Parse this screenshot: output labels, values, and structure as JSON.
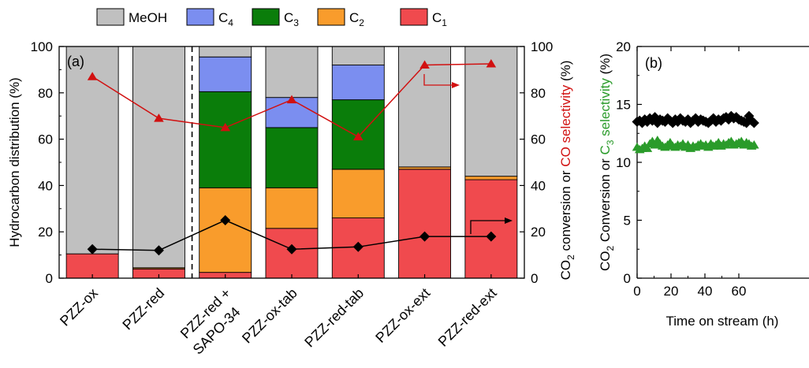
{
  "legend": [
    {
      "name": "MeOH",
      "color": "#c0c0c0"
    },
    {
      "name": "C",
      "sub": "4",
      "color": "#7b8ef0"
    },
    {
      "name": "C",
      "sub": "3",
      "color": "#0a7d0a"
    },
    {
      "name": "C",
      "sub": "2",
      "color": "#f99c2c"
    },
    {
      "name": "C",
      "sub": "1",
      "color": "#f04a4e"
    }
  ],
  "chart_data": [
    {
      "type": "bar",
      "panel_label": "(a)",
      "stacked": true,
      "categories": [
        "PZZ-ox",
        "PZZ-red",
        "PZZ-red +\nSAPO-34",
        "PZZ-ox-tab",
        "PZZ-red-tab",
        "PZZ-ox-ext",
        "PZZ-red-ext"
      ],
      "series": [
        {
          "name": "C1",
          "color": "#f04a4e",
          "values": [
            10.5,
            4.0,
            2.5,
            21.5,
            26.0,
            47.0,
            42.5
          ]
        },
        {
          "name": "C2",
          "color": "#f99c2c",
          "values": [
            0.0,
            0.5,
            36.5,
            17.5,
            21.0,
            1.0,
            1.5
          ]
        },
        {
          "name": "C3",
          "color": "#0a7d0a",
          "values": [
            0.0,
            0.0,
            41.5,
            26.0,
            30.0,
            0.0,
            0.0
          ]
        },
        {
          "name": "C4",
          "color": "#7b8ef0",
          "values": [
            0.0,
            0.0,
            15.0,
            13.0,
            15.0,
            0.0,
            0.0
          ]
        },
        {
          "name": "MeOH",
          "color": "#c0c0c0",
          "values": [
            89.5,
            95.5,
            4.5,
            22.0,
            8.0,
            52.0,
            56.0
          ]
        }
      ],
      "ylabel": "Hydrocarbon distribution (%)",
      "ylim": [
        0,
        100
      ],
      "yticks": [
        0,
        20,
        40,
        60,
        80,
        100
      ],
      "y2label_prefix": "CO",
      "y2label_sub": "2",
      "y2label_mid": " conversion or ",
      "y2label_red": "CO selectivity",
      "y2label_suffix": " (%)",
      "y2lim": [
        0,
        100
      ],
      "y2ticks": [
        0,
        20,
        40,
        60,
        80,
        100
      ],
      "overlay_series": [
        {
          "name": "CO selectivity",
          "marker": "triangle",
          "color": "#d11010",
          "axis": "right",
          "values": [
            87,
            69,
            65,
            77,
            61,
            92,
            92.5
          ]
        },
        {
          "name": "CO2 conversion",
          "marker": "diamond",
          "color": "#000000",
          "axis": "right",
          "values": [
            12.5,
            12,
            25,
            12.5,
            13.5,
            18,
            18
          ]
        }
      ],
      "divider_after_index": 1,
      "grid": false
    },
    {
      "type": "scatter",
      "panel_label": "(b)",
      "xlabel": "Time on stream (h)",
      "xticks": [
        0,
        20,
        40,
        60
      ],
      "xlim": [
        0,
        70
      ],
      "ylim": [
        0,
        20
      ],
      "yticks": [
        0,
        5,
        10,
        15,
        20
      ],
      "ylabel_black": "CO",
      "ylabel_sub1": "2",
      "ylabel_mid": " Conversion or ",
      "ylabel_green": "C",
      "ylabel_sub2": "3",
      "ylabel_green2": " selectivity",
      "ylabel_suffix": " (%)",
      "series": [
        {
          "name": "CO2 conversion",
          "marker": "diamond",
          "color": "#000000",
          "x": [
            0,
            1.5,
            3,
            4.5,
            6,
            7.5,
            9,
            10.5,
            12,
            13.5,
            15,
            16.5,
            18,
            19.5,
            21,
            22.5,
            24,
            25.5,
            27,
            28.5,
            30,
            31.5,
            33,
            34.5,
            36,
            37.5,
            39,
            40.5,
            42,
            43.5,
            45,
            46.5,
            48,
            49.5,
            51,
            52.5,
            54,
            55.5,
            57,
            58.5,
            60,
            61.5,
            63,
            64.5,
            66,
            67.5,
            69
          ],
          "y": [
            13.5,
            13.6,
            13.4,
            13.7,
            13.5,
            13.8,
            13.6,
            13.9,
            13.4,
            13.7,
            13.6,
            13.5,
            13.8,
            13.6,
            13.4,
            13.7,
            13.5,
            13.8,
            13.6,
            13.5,
            13.7,
            13.4,
            13.6,
            13.8,
            13.5,
            13.7,
            13.6,
            13.5,
            13.4,
            13.6,
            13.8,
            13.5,
            13.7,
            13.6,
            13.8,
            13.9,
            13.7,
            14.0,
            13.8,
            13.9,
            13.7,
            13.6,
            13.5,
            13.4,
            14.0,
            13.6,
            13.4
          ]
        },
        {
          "name": "C3 selectivity",
          "marker": "triangle",
          "color": "#2a9b2a",
          "x": [
            0,
            1.5,
            3,
            4.5,
            6,
            7.5,
            9,
            10.5,
            12,
            13.5,
            15,
            16.5,
            18,
            19.5,
            21,
            22.5,
            24,
            25.5,
            27,
            28.5,
            30,
            31.5,
            33,
            34.5,
            36,
            37.5,
            39,
            40.5,
            42,
            43.5,
            45,
            46.5,
            48,
            49.5,
            51,
            52.5,
            54,
            55.5,
            57,
            58.5,
            60,
            61.5,
            63,
            64.5,
            66,
            67.5,
            69
          ],
          "y": [
            11.3,
            11.1,
            11.2,
            11.4,
            11.2,
            11.6,
            11.8,
            11.5,
            11.9,
            11.6,
            11.4,
            11.3,
            11.5,
            11.7,
            11.4,
            11.3,
            11.5,
            11.4,
            11.6,
            11.3,
            11.5,
            11.2,
            11.4,
            11.3,
            11.5,
            11.6,
            11.4,
            11.5,
            11.3,
            11.6,
            11.4,
            11.5,
            11.7,
            11.4,
            11.6,
            11.5,
            11.7,
            11.8,
            11.5,
            11.6,
            11.7,
            11.8,
            11.5,
            11.7,
            11.6,
            11.4,
            11.5
          ]
        }
      ],
      "grid": false
    }
  ]
}
